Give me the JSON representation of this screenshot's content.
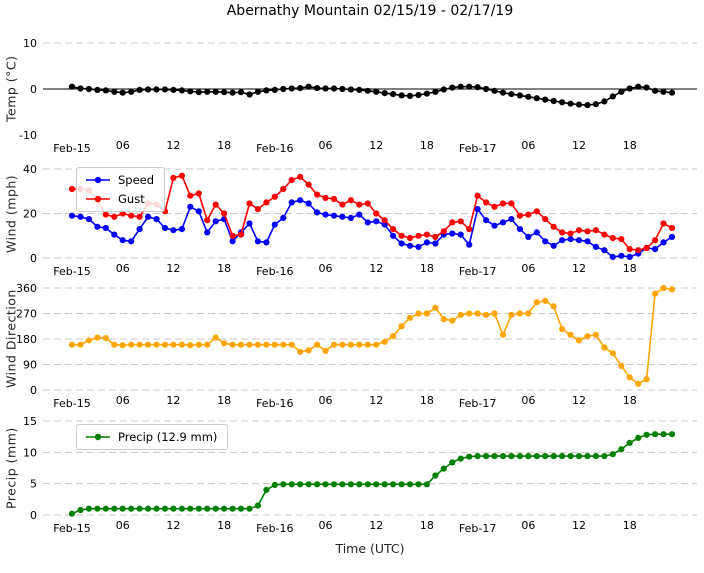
{
  "title": "Abernathy Mountain 02/15/19 - 02/17/19",
  "xlabel": "Time (UTC)",
  "legend": {
    "speed": "Speed",
    "gust": "Gust",
    "precip": "Precip (12.9 mm)"
  },
  "colors": {
    "temp": "#000000",
    "speed": "#0000ff",
    "gust": "#ff0000",
    "direction": "#ffa500",
    "precip": "#008000",
    "grid": "#c8c8c8",
    "zero_line": "#000000"
  },
  "xticks": [
    {
      "hour": 0,
      "label": "Feb-15",
      "day": true
    },
    {
      "hour": 6,
      "label": "06",
      "day": false
    },
    {
      "hour": 12,
      "label": "12",
      "day": false
    },
    {
      "hour": 18,
      "label": "18",
      "day": false
    },
    {
      "hour": 24,
      "label": "Feb-16",
      "day": true
    },
    {
      "hour": 30,
      "label": "06",
      "day": false
    },
    {
      "hour": 36,
      "label": "12",
      "day": false
    },
    {
      "hour": 42,
      "label": "18",
      "day": false
    },
    {
      "hour": 48,
      "label": "Feb-17",
      "day": true
    },
    {
      "hour": 54,
      "label": "06",
      "day": false
    },
    {
      "hour": 60,
      "label": "12",
      "day": false
    },
    {
      "hour": 66,
      "label": "18",
      "day": false
    }
  ],
  "chart_data": [
    {
      "type": "line",
      "name": "temperature",
      "ylabel": "Temp (°C)",
      "ylim": [
        -10,
        10
      ],
      "yticks": [
        -10,
        0,
        10
      ],
      "grid_ticks": [
        10
      ],
      "zero_line": true,
      "series": [
        {
          "name": "Temp",
          "color_key": "temp",
          "values": [
            0.5,
            0.1,
            0,
            -0.2,
            -0.3,
            -0.6,
            -0.8,
            -0.6,
            -0.2,
            -0.1,
            -0.1,
            -0.1,
            -0.2,
            -0.3,
            -0.5,
            -0.7,
            -0.6,
            -0.6,
            -0.7,
            -0.8,
            -0.7,
            -1.2,
            -0.6,
            -0.3,
            -0.2,
            0,
            0.1,
            0.2,
            0.5,
            0.2,
            0.1,
            0.1,
            0,
            -0.1,
            -0.2,
            -0.4,
            -0.6,
            -0.9,
            -1.1,
            -1.4,
            -1.5,
            -1.3,
            -1,
            -0.6,
            -0.1,
            0.3,
            0.5,
            0.5,
            0.4,
            0,
            -0.4,
            -0.8,
            -1.1,
            -1.4,
            -1.7,
            -2,
            -2.3,
            -2.6,
            -2.9,
            -3.2,
            -3.4,
            -3.5,
            -3.3,
            -2.7,
            -1.6,
            -0.6,
            0.1,
            0.5,
            0.3,
            -0.4,
            -0.6,
            -0.8
          ]
        }
      ]
    },
    {
      "type": "line",
      "name": "wind",
      "ylabel": "Wind (mph)",
      "ylim": [
        0,
        40
      ],
      "yticks": [
        0,
        20,
        40
      ],
      "grid_ticks": [
        0,
        20,
        40
      ],
      "zero_line": false,
      "series": [
        {
          "name": "Speed",
          "color_key": "speed",
          "values": [
            19,
            18.5,
            17.5,
            14,
            13.5,
            10.5,
            8,
            7.5,
            13,
            18.5,
            17.5,
            13.5,
            12.5,
            13,
            23,
            21,
            11.5,
            16.5,
            17.5,
            7.5,
            11.5,
            15.5,
            7.5,
            7,
            15,
            18,
            25,
            26,
            24.5,
            20.5,
            19.5,
            19,
            18.5,
            18,
            19.5,
            16,
            16.5,
            15,
            10,
            6.5,
            5.5,
            5,
            7,
            6.5,
            10.5,
            11,
            10.5,
            6,
            22,
            17,
            14.5,
            16,
            17.5,
            13,
            9.5,
            11.5,
            7.5,
            5.5,
            8,
            8.5,
            8,
            7.5,
            5,
            3.5,
            0.5,
            1,
            0.5,
            2,
            4.5,
            4,
            7,
            9.5
          ]
        },
        {
          "name": "Gust",
          "color_key": "gust",
          "values": [
            31,
            31,
            30.5,
            26,
            19.5,
            18.5,
            20,
            19,
            18.5,
            24.5,
            24,
            21,
            36,
            37,
            28,
            29,
            17,
            24,
            20,
            10,
            10.5,
            24.5,
            22,
            25,
            27.5,
            31,
            35,
            36.5,
            33,
            28.5,
            27,
            26.5,
            24,
            26,
            24,
            24.5,
            20,
            17,
            13,
            10,
            9,
            10,
            10.5,
            9.5,
            12,
            16,
            16.5,
            13,
            28,
            25,
            23,
            24.5,
            24.5,
            19,
            19.5,
            21,
            17.5,
            14,
            11.5,
            11,
            12.5,
            12,
            12.5,
            10.5,
            9,
            8.5,
            4,
            3.5,
            4.5,
            8,
            15.5,
            13.5
          ]
        }
      ]
    },
    {
      "type": "line",
      "name": "wind-direction",
      "ylabel": "Wind Direction",
      "ylim": [
        0,
        360
      ],
      "yticks": [
        0,
        90,
        180,
        270,
        360
      ],
      "grid_ticks": [
        0,
        90,
        180,
        270,
        360
      ],
      "zero_line": false,
      "series": [
        {
          "name": "Direction",
          "color_key": "direction",
          "values": [
            160,
            160,
            175,
            185,
            183,
            160,
            158,
            160,
            160,
            160,
            160,
            160,
            160,
            160,
            158,
            160,
            160,
            185,
            165,
            160,
            160,
            160,
            160,
            160,
            160,
            160,
            160,
            135,
            140,
            160,
            138,
            160,
            160,
            160,
            160,
            160,
            160,
            170,
            190,
            225,
            255,
            270,
            270,
            290,
            250,
            245,
            265,
            270,
            270,
            265,
            270,
            195,
            265,
            270,
            270,
            310,
            315,
            295,
            215,
            195,
            175,
            190,
            195,
            150,
            130,
            85,
            45,
            22,
            38,
            340,
            360,
            355
          ]
        }
      ]
    },
    {
      "type": "line",
      "name": "precipitation",
      "ylabel": "Precip (mm)",
      "ylim": [
        0,
        15
      ],
      "yticks": [
        0,
        5,
        10,
        15
      ],
      "grid_ticks": [
        0,
        5,
        10,
        15
      ],
      "zero_line": false,
      "series": [
        {
          "name": "Precip (12.9 mm)",
          "color_key": "precip",
          "values": [
            0.2,
            0.8,
            1,
            1,
            1,
            1,
            1,
            1,
            1,
            1,
            1,
            1,
            1,
            1,
            1,
            1,
            1,
            1,
            1,
            1,
            1,
            1,
            1.5,
            4,
            4.8,
            4.9,
            4.9,
            4.9,
            4.9,
            4.9,
            4.9,
            4.9,
            4.9,
            4.9,
            4.9,
            4.9,
            4.9,
            4.9,
            4.9,
            4.9,
            4.9,
            4.9,
            4.9,
            6.3,
            7.4,
            8.4,
            9,
            9.3,
            9.4,
            9.4,
            9.4,
            9.4,
            9.4,
            9.4,
            9.4,
            9.4,
            9.4,
            9.4,
            9.4,
            9.4,
            9.4,
            9.4,
            9.4,
            9.4,
            9.7,
            10.5,
            11.5,
            12.3,
            12.8,
            12.9,
            12.9,
            12.9
          ]
        }
      ]
    }
  ]
}
